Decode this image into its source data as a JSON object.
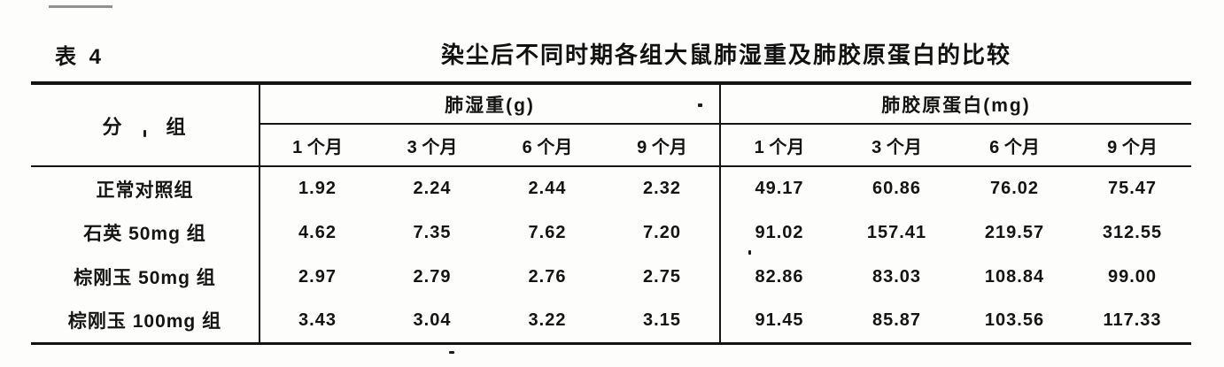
{
  "caption": {
    "label": "表 4",
    "title": "染尘后不同时期各组大鼠肺湿重及肺胶原蛋白的比较"
  },
  "table": {
    "columns": {
      "group": "分　　组",
      "section_wet": "肺湿重(g)",
      "section_collagen": "肺胶原蛋白(mg)",
      "months": [
        "1 个月",
        "3 个月",
        "6 个月",
        "9 个月"
      ]
    },
    "rows": [
      {
        "label": "正常对照组",
        "wet": [
          "1.92",
          "2.24",
          "2.44",
          "2.32"
        ],
        "collagen": [
          "49.17",
          "60.86",
          "76.02",
          "75.47"
        ]
      },
      {
        "label": "石英 50mg 组",
        "wet": [
          "4.62",
          "7.35",
          "7.62",
          "7.20"
        ],
        "collagen": [
          "91.02",
          "157.41",
          "219.57",
          "312.55"
        ]
      },
      {
        "label": "棕刚玉 50mg 组",
        "wet": [
          "2.97",
          "2.79",
          "2.76",
          "2.75"
        ],
        "collagen": [
          "82.86",
          "83.03",
          "108.84",
          "99.00"
        ]
      },
      {
        "label": "棕刚玉 100mg 组",
        "wet": [
          "3.43",
          "3.04",
          "3.22",
          "3.15"
        ],
        "collagen": [
          "91.45",
          "85.87",
          "103.56",
          "117.33"
        ]
      }
    ]
  },
  "colors": {
    "ink": "#141414",
    "paper": "#fdfdfc"
  }
}
